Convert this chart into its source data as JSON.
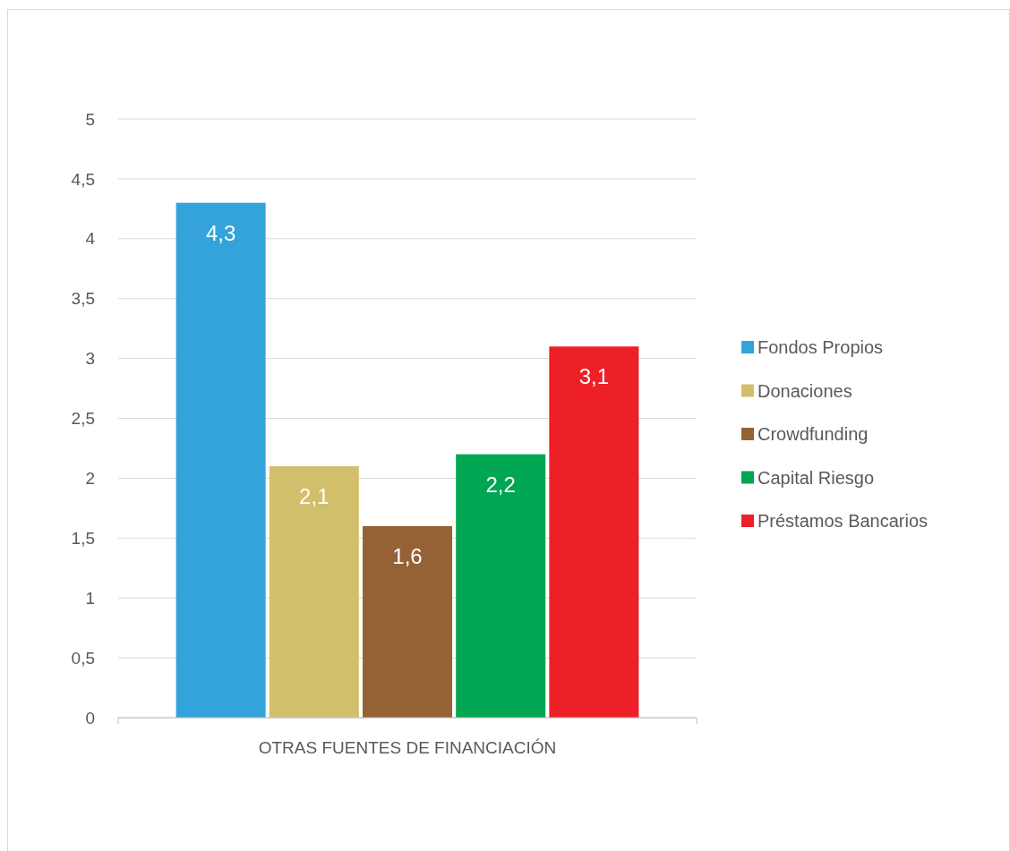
{
  "chart_data": {
    "type": "bar",
    "categories": [
      "OTRAS FUENTES DE FINANCIACIÓN"
    ],
    "series": [
      {
        "name": "Fondos Propios",
        "color": "#34a3db",
        "values": [
          4.3
        ],
        "value_labels": [
          "4,3"
        ]
      },
      {
        "name": "Donaciones",
        "color": "#d2bf6b",
        "values": [
          2.1
        ],
        "value_labels": [
          "2,1"
        ]
      },
      {
        "name": "Crowdfunding",
        "color": "#956236",
        "values": [
          1.6
        ],
        "value_labels": [
          "1,6"
        ]
      },
      {
        "name": "Capital Riesgo",
        "color": "#00a651",
        "values": [
          2.2
        ],
        "value_labels": [
          "2,2"
        ]
      },
      {
        "name": "Préstamos Bancarios",
        "color": "#ed1f27",
        "values": [
          3.1
        ],
        "value_labels": [
          "3,1"
        ]
      }
    ],
    "ylim": [
      0,
      5
    ],
    "yticks": [
      0,
      {
        "value": 0.5,
        "label": "0,5"
      },
      1,
      {
        "value": 1.5,
        "label": "1,5"
      },
      2,
      {
        "value": 2.5,
        "label": "2,5"
      },
      3,
      {
        "value": 3.5,
        "label": "3,5"
      },
      4,
      {
        "value": 4.5,
        "label": "4,5"
      },
      5
    ],
    "grid": "y",
    "legend": "right"
  }
}
